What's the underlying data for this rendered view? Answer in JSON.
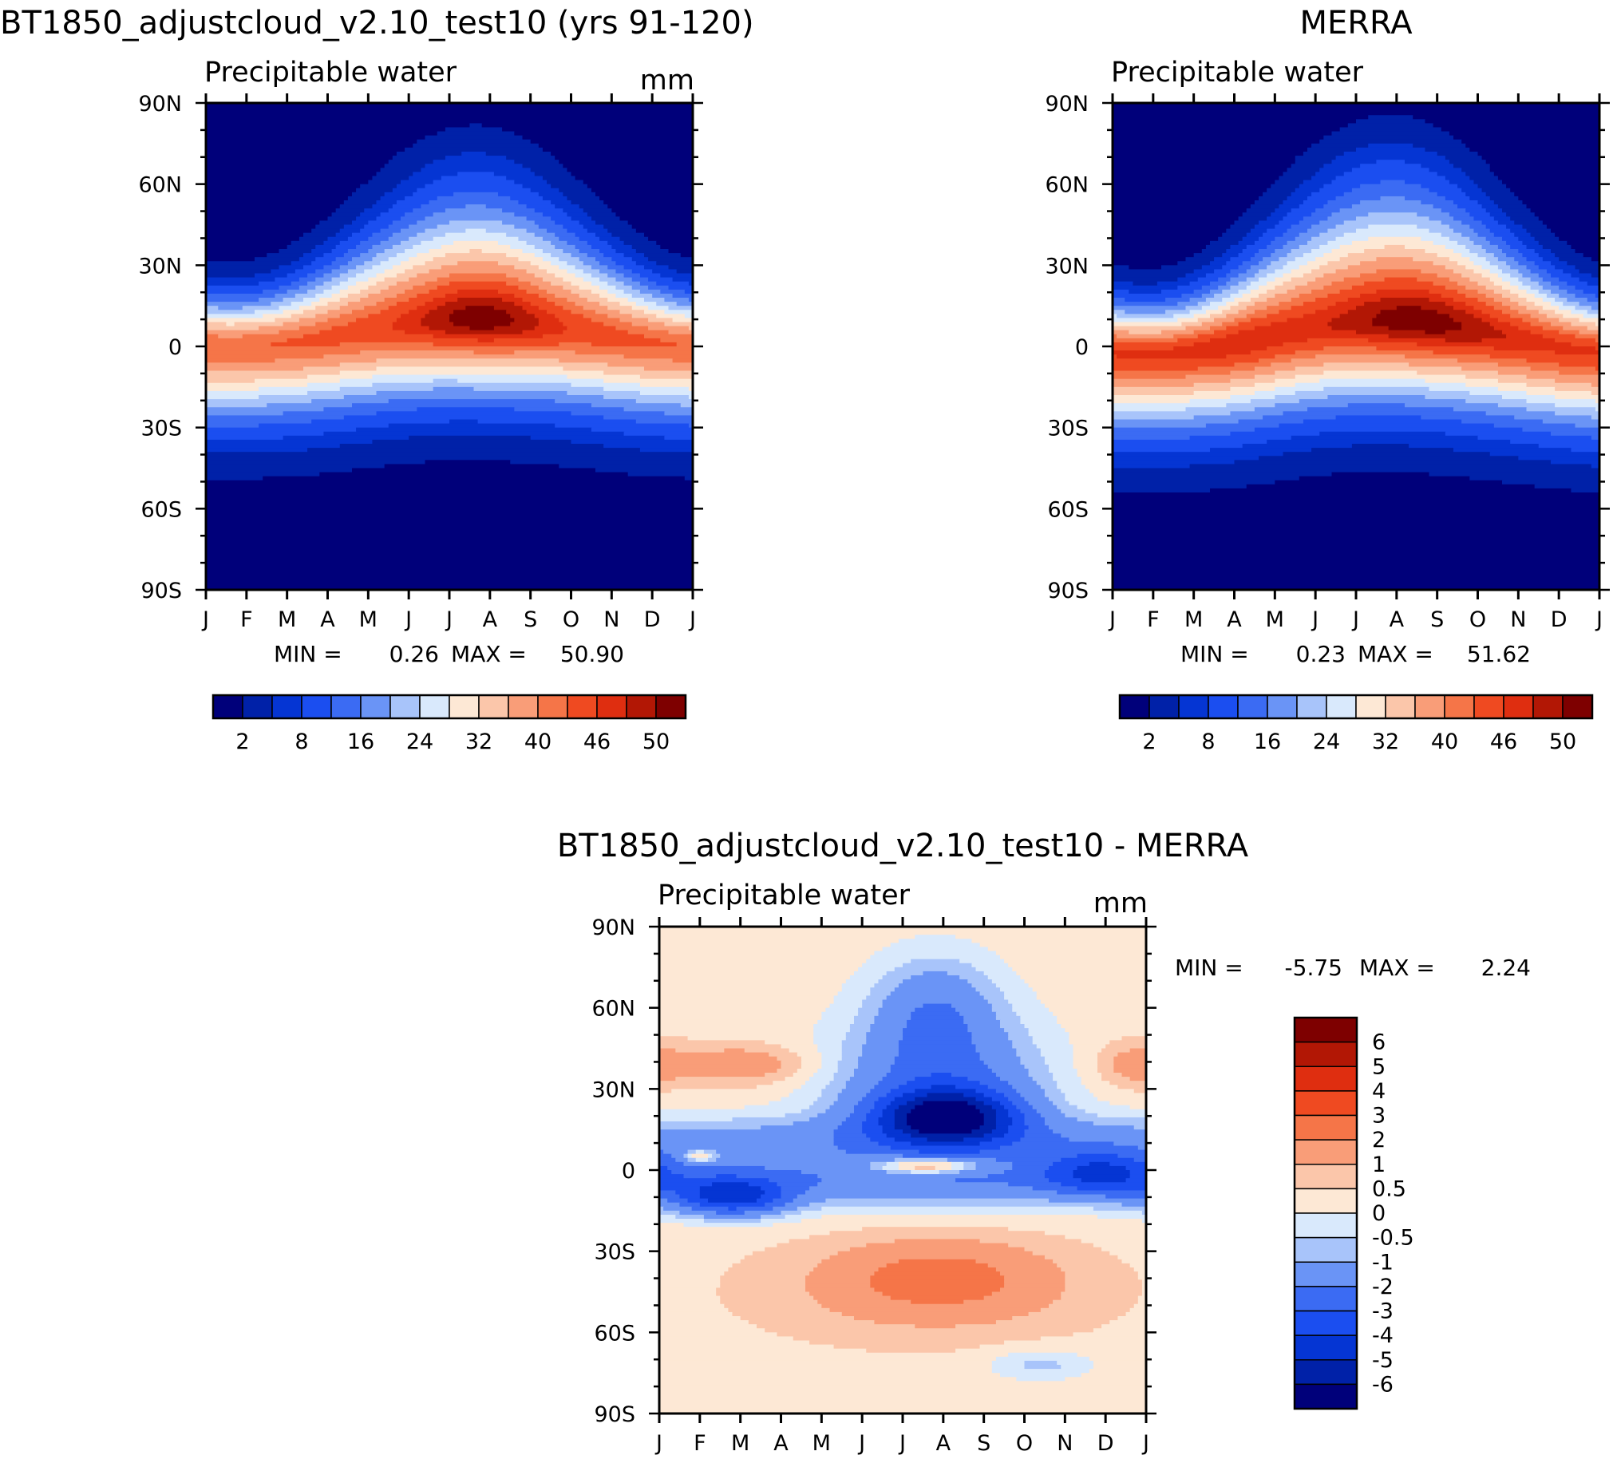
{
  "chart_data": [
    {
      "type": "heatmap",
      "id": "model",
      "title": "BT1850_adjustcloud_v2.10_test10 (yrs 91-120)",
      "variable": "Precipitable water",
      "units": "mm",
      "stats": {
        "min_label": "MIN =",
        "min": "0.26",
        "max_label": "MAX =",
        "max": "50.90"
      },
      "x": {
        "ticks": [
          "J",
          "F",
          "M",
          "A",
          "M",
          "J",
          "J",
          "A",
          "S",
          "O",
          "N",
          "D",
          "J"
        ],
        "range": [
          0,
          12
        ]
      },
      "y": {
        "ticks": [
          "90N",
          "60N",
          "30N",
          "0",
          "30S",
          "60S",
          "90S"
        ],
        "range": [
          90,
          -90
        ]
      },
      "colorbar": {
        "orientation": "horizontal",
        "labels": [
          "2",
          "8",
          "16",
          "24",
          "32",
          "40",
          "46",
          "50"
        ]
      },
      "field": {
        "kind": "absolute",
        "summary": "maximum about 51 mm near 5-10N in July-August, minimum near 0.3 mm over Antarctica"
      }
    },
    {
      "type": "heatmap",
      "id": "obs",
      "title": "MERRA",
      "variable": "Precipitable water",
      "units": "",
      "stats": {
        "min_label": "MIN =",
        "min": "0.23",
        "max_label": "MAX =",
        "max": "51.62"
      },
      "x": {
        "ticks": [
          "J",
          "F",
          "M",
          "A",
          "M",
          "J",
          "J",
          "A",
          "S",
          "O",
          "N",
          "D",
          "J"
        ],
        "range": [
          0,
          12
        ]
      },
      "y": {
        "ticks": [
          "90N",
          "60N",
          "30N",
          "0",
          "30S",
          "60S",
          "90S"
        ],
        "range": [
          90,
          -90
        ]
      },
      "colorbar": {
        "orientation": "horizontal",
        "labels": [
          "2",
          "8",
          "16",
          "24",
          "32",
          "40",
          "46",
          "50"
        ]
      },
      "field": {
        "kind": "absolute",
        "summary": "maximum about 52 mm near 5-10N in August, minimum near 0.2 mm over Antarctica"
      }
    },
    {
      "type": "heatmap",
      "id": "diff",
      "title": "BT1850_adjustcloud_v2.10_test10 - MERRA",
      "variable": "Precipitable water",
      "units": "mm",
      "stats": {
        "min_label": "MIN =",
        "min": "-5.75",
        "max_label": "MAX =",
        "max": "2.24"
      },
      "x": {
        "ticks": [
          "J",
          "F",
          "M",
          "A",
          "M",
          "J",
          "J",
          "A",
          "S",
          "O",
          "N",
          "D",
          "J"
        ],
        "range": [
          0,
          12
        ]
      },
      "y": {
        "ticks": [
          "90N",
          "60N",
          "30N",
          "0",
          "30S",
          "60S",
          "90S"
        ],
        "range": [
          90,
          -90
        ]
      },
      "colorbar": {
        "orientation": "vertical",
        "labels": [
          "6",
          "5",
          "4",
          "3",
          "2",
          "1",
          "0.5",
          "0",
          "-0.5",
          "-1",
          "-2",
          "-3",
          "-4",
          "-5",
          "-6"
        ]
      },
      "field": {
        "kind": "difference",
        "summary": "dry bias down to about -5.75 mm near 20N in July-August, weak positive bias near 2 mm at the equator in July and near 40S in winter"
      }
    }
  ],
  "colors": {
    "absolute_palette": [
      "#00007a",
      "#0021a8",
      "#0535d3",
      "#1b4ef0",
      "#3b6bf3",
      "#6a94f6",
      "#a8c4fa",
      "#d9e9fc",
      "#fde8d5",
      "#fbc6aa",
      "#f99d78",
      "#f57548",
      "#ef4a21",
      "#df2e10",
      "#b21705",
      "#7e0000"
    ],
    "difference_palette": [
      "#00007a",
      "#0021a8",
      "#0535d3",
      "#1b4ef0",
      "#3b6bf3",
      "#6a94f6",
      "#a8c4fa",
      "#d9e9fc",
      "#fde8d5",
      "#fbc6aa",
      "#f99d78",
      "#f57548",
      "#ef4a21",
      "#df2e10",
      "#b21705",
      "#7e0000"
    ]
  }
}
